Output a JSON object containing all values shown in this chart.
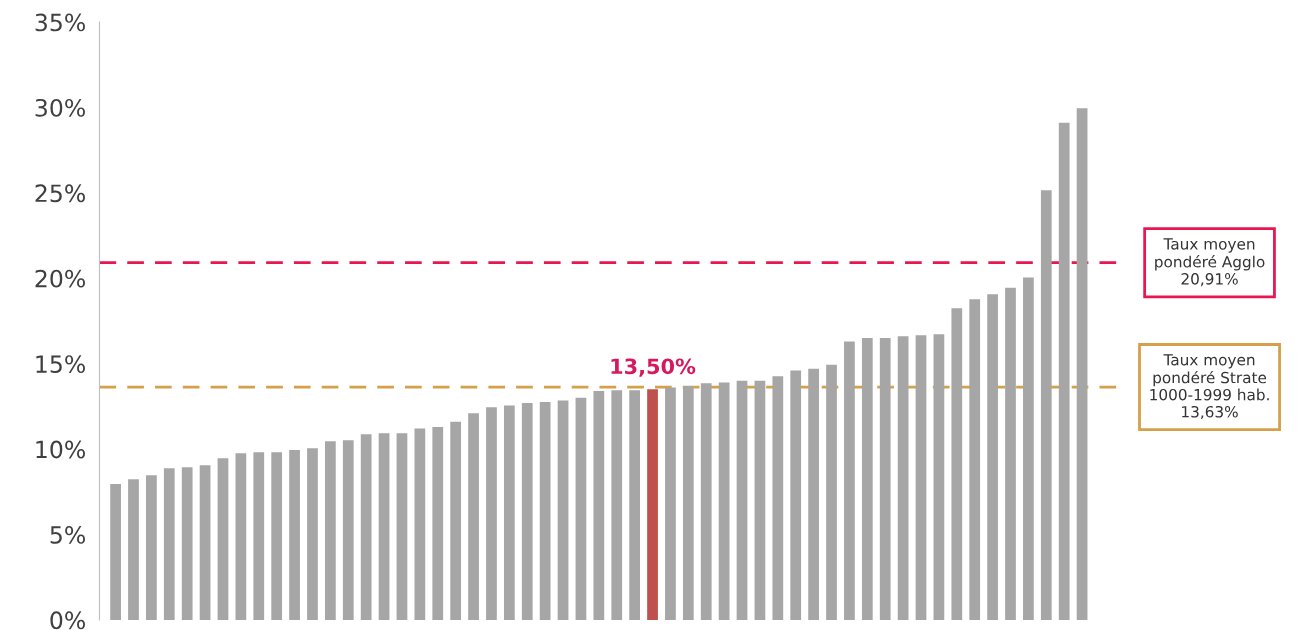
{
  "chart_data": {
    "type": "bar",
    "categories": [
      null,
      null,
      null,
      null,
      null,
      null,
      null,
      null,
      null,
      null,
      null,
      null,
      null,
      null,
      null,
      null,
      null,
      null,
      null,
      null,
      null,
      null,
      null,
      null,
      null,
      null,
      null,
      null,
      null,
      null,
      null,
      null,
      null,
      null,
      null,
      null,
      null,
      null,
      null,
      null,
      null,
      null,
      null,
      null,
      null,
      null,
      null,
      null,
      null,
      null,
      null,
      null,
      null,
      null,
      null
    ],
    "values": [
      7.95,
      8.24,
      8.47,
      8.88,
      8.94,
      9.06,
      9.47,
      9.76,
      9.82,
      9.82,
      9.94,
      10.05,
      10.46,
      10.52,
      10.87,
      10.93,
      10.93,
      11.2,
      11.3,
      11.6,
      12.1,
      12.45,
      12.55,
      12.7,
      12.75,
      12.85,
      13.0,
      13.4,
      13.45,
      13.45,
      13.5,
      13.6,
      13.7,
      13.85,
      13.9,
      14.0,
      14.0,
      14.26,
      14.6,
      14.7,
      14.94,
      16.3,
      16.5,
      16.5,
      16.6,
      16.67,
      16.73,
      18.25,
      18.77,
      19.07,
      19.45,
      20.05,
      25.15,
      29.1,
      29.96
    ],
    "colors": [
      "#a6a6a6",
      "#a6a6a6",
      "#a6a6a6",
      "#a6a6a6",
      "#a6a6a6",
      "#a6a6a6",
      "#a6a6a6",
      "#a6a6a6",
      "#a6a6a6",
      "#a6a6a6",
      "#a6a6a6",
      "#a6a6a6",
      "#a6a6a6",
      "#a6a6a6",
      "#a6a6a6",
      "#a6a6a6",
      "#a6a6a6",
      "#a6a6a6",
      "#a6a6a6",
      "#a6a6a6",
      "#a6a6a6",
      "#a6a6a6",
      "#a6a6a6",
      "#a6a6a6",
      "#a6a6a6",
      "#a6a6a6",
      "#a6a6a6",
      "#a6a6a6",
      "#a6a6a6",
      "#a6a6a6",
      "#c0504d",
      "#a6a6a6",
      "#a6a6a6",
      "#a6a6a6",
      "#a6a6a6",
      "#a6a6a6",
      "#a6a6a6",
      "#a6a6a6",
      "#a6a6a6",
      "#a6a6a6",
      "#a6a6a6",
      "#a6a6a6",
      "#a6a6a6",
      "#a6a6a6",
      "#a6a6a6",
      "#a6a6a6",
      "#a6a6a6",
      "#a6a6a6",
      "#a6a6a6",
      "#a6a6a6",
      "#a6a6a6",
      "#a6a6a6",
      "#a6a6a6",
      "#a6a6a6",
      "#a6a6a6"
    ],
    "value_labels": [
      null,
      null,
      null,
      null,
      null,
      null,
      null,
      null,
      null,
      null,
      null,
      null,
      null,
      null,
      null,
      null,
      null,
      null,
      null,
      null,
      null,
      null,
      null,
      null,
      null,
      null,
      null,
      null,
      null,
      null,
      "13,50%",
      null,
      null,
      null,
      null,
      null,
      null,
      null,
      null,
      null,
      null,
      null,
      null,
      null,
      null,
      null,
      null,
      null,
      null,
      null,
      null,
      null,
      null,
      null,
      null
    ],
    "ylim": [
      0,
      35
    ],
    "yticks": [
      {
        "value": 0,
        "label": "0%"
      },
      {
        "value": 5,
        "label": "5%"
      },
      {
        "value": 10,
        "label": "10%"
      },
      {
        "value": 15,
        "label": "15%"
      },
      {
        "value": 20,
        "label": "20%"
      },
      {
        "value": 25,
        "label": "25%"
      },
      {
        "value": 30,
        "label": "30%"
      },
      {
        "value": 35,
        "label": "35%"
      }
    ],
    "grid": false,
    "ref_lines": [
      {
        "axis": "y",
        "value": 20.91,
        "label": "Taux moyen\npondéré Agglo\n20,91%",
        "color": "#e8174f",
        "line_style": "dashed"
      },
      {
        "axis": "y",
        "value": 13.63,
        "label": "Taux moyen\npondéré Strate\n1000-1999 hab.\n13,63%",
        "color": "#d4a04a",
        "line_style": "dashed"
      }
    ]
  }
}
